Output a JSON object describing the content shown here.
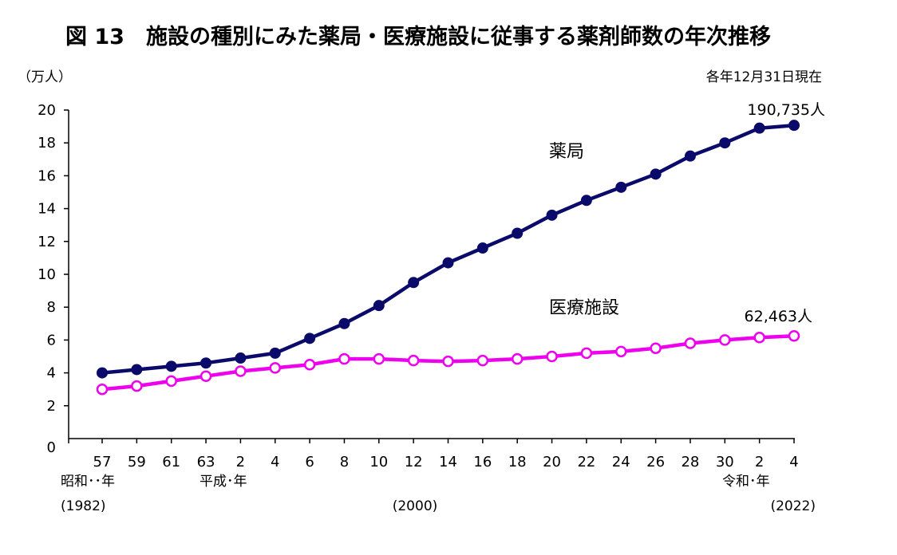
{
  "chart_data": {
    "type": "line",
    "title": "図 13　施設の種別にみた薬局・医療施設に従事する薬剤師数の年次推移",
    "ylabel": "（万人）",
    "note": "各年12月31日現在",
    "ylim": [
      0,
      20
    ],
    "yticks": [
      "0",
      "2",
      "4",
      "6",
      "8",
      "10",
      "12",
      "14",
      "16",
      "18",
      "20"
    ],
    "categories": [
      "57",
      "59",
      "61",
      "63",
      "2",
      "4",
      "6",
      "8",
      "10",
      "12",
      "14",
      "16",
      "18",
      "20",
      "22",
      "24",
      "26",
      "28",
      "30",
      "2",
      "4"
    ],
    "era_labels": [
      "昭和･･年",
      "平成･年",
      "令和･年"
    ],
    "year_labels": [
      "(1982)",
      "(2000)",
      "(2022)"
    ],
    "series": [
      {
        "name": "薬局",
        "color": "#0a0a6b",
        "values": [
          4.0,
          4.2,
          4.4,
          4.6,
          4.9,
          5.2,
          6.1,
          7.0,
          8.1,
          9.5,
          10.7,
          11.6,
          12.5,
          13.6,
          14.5,
          15.3,
          16.1,
          17.2,
          18.0,
          18.9,
          19.07
        ],
        "end_label": "190,735人"
      },
      {
        "name": "医療施設",
        "color": "#ee00ee",
        "values": [
          3.0,
          3.2,
          3.5,
          3.8,
          4.1,
          4.3,
          4.5,
          4.85,
          4.85,
          4.75,
          4.7,
          4.75,
          4.85,
          5.0,
          5.2,
          5.3,
          5.5,
          5.8,
          6.0,
          6.15,
          6.25
        ],
        "end_label": "62,463人"
      }
    ],
    "grid": false,
    "legend": "inline-labels"
  }
}
